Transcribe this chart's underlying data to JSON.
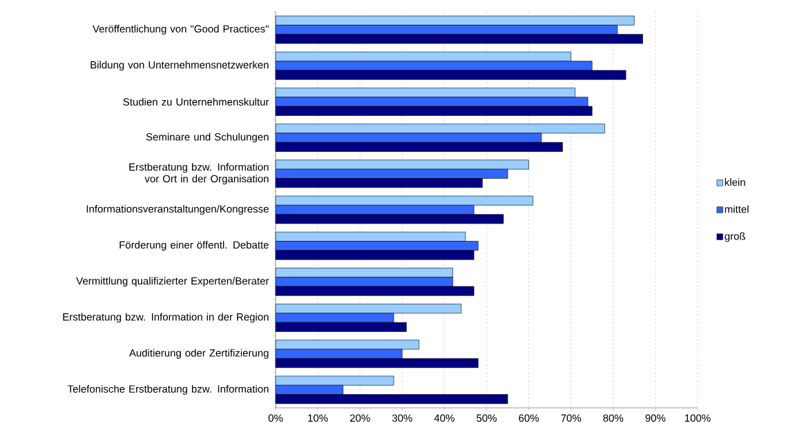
{
  "chart_data": {
    "type": "bar",
    "orientation": "horizontal",
    "categories": [
      "Veröffentlichung von \"Good Practices\"",
      "Bildung von Unternehmensnetzwerken",
      "Studien zu Unternehmenskultur",
      "Seminare und Schulungen",
      "Erstberatung bzw. Information vor Ort in der Organisation",
      "Informationsveranstaltungen/Kongresse",
      "Förderung einer öffentl. Debatte",
      "Vermittlung qualifizierter Experten/Berater",
      "Erstberatung bzw. Information in der Region",
      "Auditierung oder Zertifizierung",
      "Telefonische Erstberatung bzw. Information"
    ],
    "series": [
      {
        "name": "klein",
        "color": "#99ccff",
        "values": [
          85,
          70,
          71,
          78,
          60,
          61,
          45,
          42,
          44,
          34,
          28
        ]
      },
      {
        "name": "mittel",
        "color": "#3366ff",
        "values": [
          81,
          75,
          74,
          63,
          55,
          47,
          48,
          42,
          28,
          30,
          16
        ]
      },
      {
        "name": "groß",
        "color": "#000080",
        "values": [
          87,
          83,
          75,
          68,
          49,
          54,
          47,
          47,
          31,
          48,
          55
        ]
      }
    ],
    "xlim": [
      0,
      100
    ],
    "xticks": [
      {
        "value": 0,
        "label": "0%"
      },
      {
        "value": 10,
        "label": "10%"
      },
      {
        "value": 20,
        "label": "20%"
      },
      {
        "value": 30,
        "label": "30%"
      },
      {
        "value": 40,
        "label": "40%"
      },
      {
        "value": 50,
        "label": "50%"
      },
      {
        "value": 60,
        "label": "60%"
      },
      {
        "value": 70,
        "label": "70%"
      },
      {
        "value": 80,
        "label": "80%"
      },
      {
        "value": 90,
        "label": "90%"
      },
      {
        "value": 100,
        "label": "100%"
      }
    ],
    "grid": "x",
    "legend": "right"
  }
}
